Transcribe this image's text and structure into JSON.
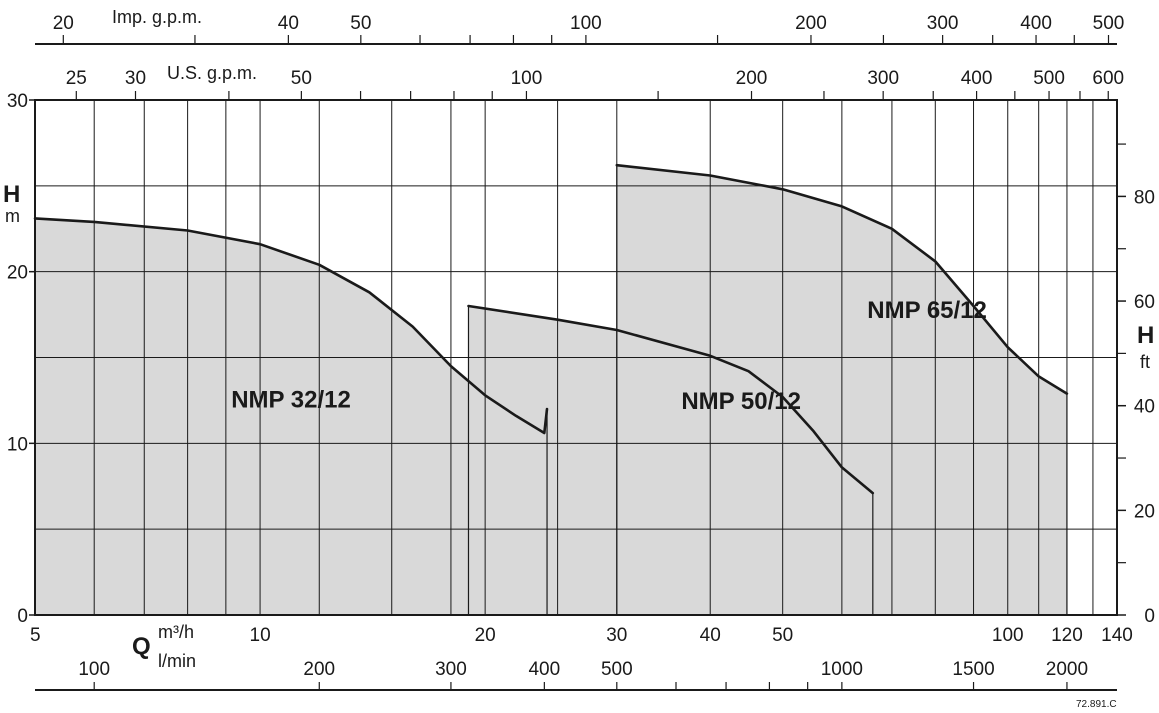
{
  "chart_data": {
    "type": "area",
    "x_scale": "log",
    "x_unit": "m³/h",
    "y_unit": "m",
    "xlim": [
      5,
      140
    ],
    "ylim": [
      0,
      30
    ],
    "grid": true,
    "axes": {
      "bottom": {
        "letter": "Q",
        "unit_top": "m³/h",
        "unit_bottom": "l/min",
        "ticks_m3h": [
          5,
          10,
          20,
          30,
          40,
          50,
          100,
          120,
          140
        ],
        "lmin_ticks": [
          100,
          200,
          300,
          400,
          500,
          1000,
          1500,
          2000
        ]
      },
      "top_imp": {
        "label": "Imp. g.p.m.",
        "ticks": [
          20,
          40,
          50,
          100,
          200,
          300,
          400,
          500
        ],
        "minor": [
          30,
          60,
          70,
          80,
          90,
          150,
          250,
          350,
          450
        ]
      },
      "top_us": {
        "label": "U.S. g.p.m.",
        "ticks": [
          25,
          30,
          50,
          100,
          200,
          300,
          400,
          500,
          600
        ],
        "minor": [
          40,
          60,
          70,
          80,
          90,
          150,
          250,
          350,
          450,
          550
        ]
      },
      "left": {
        "letter": "H",
        "unit": "m",
        "ticks": [
          0,
          10,
          20,
          30
        ],
        "gridlines": [
          5,
          10,
          15,
          20,
          25
        ]
      },
      "right": {
        "letter": "H",
        "unit": "ft",
        "ticks": [
          0,
          20,
          40,
          60,
          80
        ],
        "minor": [
          10,
          30,
          50,
          70,
          90
        ]
      }
    },
    "x_gridlines": [
      5,
      6,
      7,
      8,
      9,
      10,
      12,
      15,
      18,
      20,
      25,
      30,
      40,
      50,
      60,
      70,
      80,
      90,
      100,
      110,
      120,
      130,
      140
    ],
    "series": [
      {
        "name": "NMP 32/12",
        "points": [
          [
            5,
            23.1
          ],
          [
            6,
            22.9
          ],
          [
            8,
            22.4
          ],
          [
            10,
            21.6
          ],
          [
            12,
            20.4
          ],
          [
            14,
            18.8
          ],
          [
            16,
            16.8
          ],
          [
            18,
            14.5
          ],
          [
            20,
            12.8
          ],
          [
            22,
            11.6
          ],
          [
            24,
            10.6
          ],
          [
            24.2,
            12.0
          ]
        ],
        "label_anchor": [
          11,
          12.1
        ]
      },
      {
        "name": "NMP 50/12",
        "points": [
          [
            19,
            18.0
          ],
          [
            25,
            17.2
          ],
          [
            30,
            16.6
          ],
          [
            40,
            15.1
          ],
          [
            45,
            14.2
          ],
          [
            50,
            12.7
          ],
          [
            55,
            10.7
          ],
          [
            60,
            8.6
          ],
          [
            66,
            7.1
          ]
        ],
        "label_anchor": [
          44,
          12.0
        ]
      },
      {
        "name": "NMP 65/12",
        "points": [
          [
            30,
            26.2
          ],
          [
            40,
            25.6
          ],
          [
            50,
            24.8
          ],
          [
            60,
            23.8
          ],
          [
            70,
            22.5
          ],
          [
            80,
            20.6
          ],
          [
            90,
            18.0
          ],
          [
            100,
            15.6
          ],
          [
            110,
            13.9
          ],
          [
            120,
            12.9
          ]
        ],
        "label_anchor": [
          78,
          17.3
        ]
      }
    ]
  },
  "code": "72.891.C"
}
